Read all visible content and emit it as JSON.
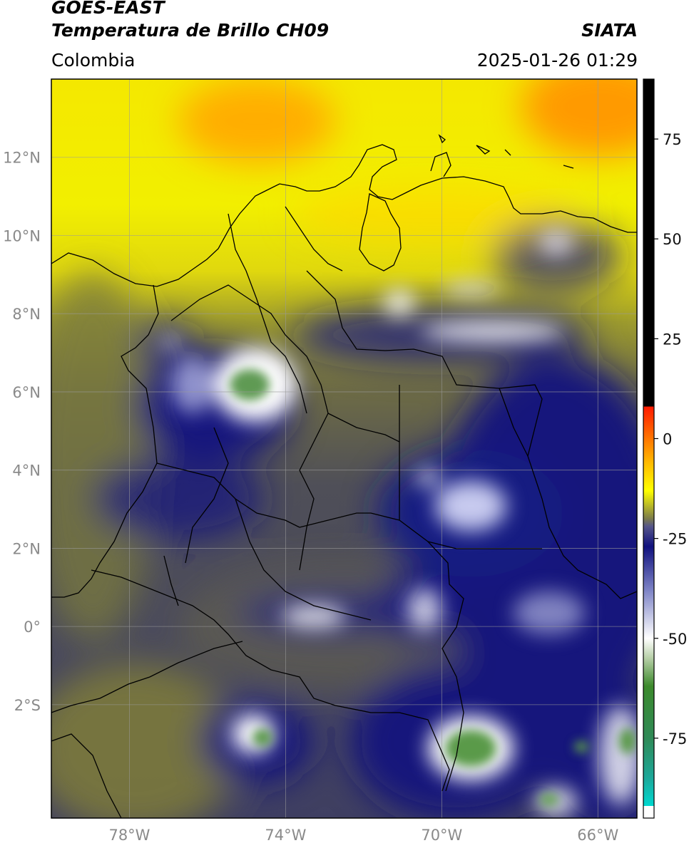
{
  "header": {
    "satellite": "GOES-EAST",
    "product": "Temperatura de Brillo CH09",
    "region": "Colombia",
    "agency": "SIATA",
    "timestamp": "2025-01-26 01:29"
  },
  "map": {
    "lon_range": [
      -80,
      -65
    ],
    "lat_range": [
      -4.9,
      14
    ],
    "lon_ticks": [
      -78,
      -74,
      -70,
      -66
    ],
    "lon_tick_labels": [
      "78°W",
      "74°W",
      "70°W",
      "66°W"
    ],
    "lat_ticks": [
      12,
      10,
      8,
      6,
      4,
      2,
      0,
      -2
    ],
    "lat_tick_labels": [
      "12°N",
      "10°N",
      "8°N",
      "6°N",
      "4°N",
      "2°N",
      "0°",
      "2°S"
    ],
    "grid": true
  },
  "colorbar": {
    "range": [
      -95,
      90
    ],
    "ticks": [
      75,
      50,
      25,
      0,
      -25,
      -50,
      -75
    ],
    "tick_labels": [
      "75",
      "50",
      "25",
      "0",
      "-25",
      "-50",
      "-75"
    ],
    "stops": [
      {
        "v": -95,
        "c": "#ffffff"
      },
      {
        "v": -92,
        "c": "#ffffff"
      },
      {
        "v": -92,
        "c": "#00d8d0"
      },
      {
        "v": -85,
        "c": "#1ca89a"
      },
      {
        "v": -75,
        "c": "#2f8a57"
      },
      {
        "v": -62,
        "c": "#3c8a2c"
      },
      {
        "v": -55,
        "c": "#b6cfa7"
      },
      {
        "v": -50,
        "c": "#ffffff"
      },
      {
        "v": -38,
        "c": "#7e84c6"
      },
      {
        "v": -27,
        "c": "#10117e"
      },
      {
        "v": -22,
        "c": "#55558a"
      },
      {
        "v": -20,
        "c": "#7c7c4a"
      },
      {
        "v": -13,
        "c": "#ffff00"
      },
      {
        "v": -6,
        "c": "#ffba00"
      },
      {
        "v": 8,
        "c": "#ff1a00"
      },
      {
        "v": 8,
        "c": "#000000"
      },
      {
        "v": 90,
        "c": "#000000"
      }
    ]
  },
  "image_colors": {
    "warm_orange": "#ffa000",
    "yellow": "#f2f000",
    "olive": "#7f7d3c",
    "gray_slate": "#4a4a5a",
    "navy": "#14157c",
    "white_core": "#ffffff",
    "green_core": "#4f9a40"
  }
}
